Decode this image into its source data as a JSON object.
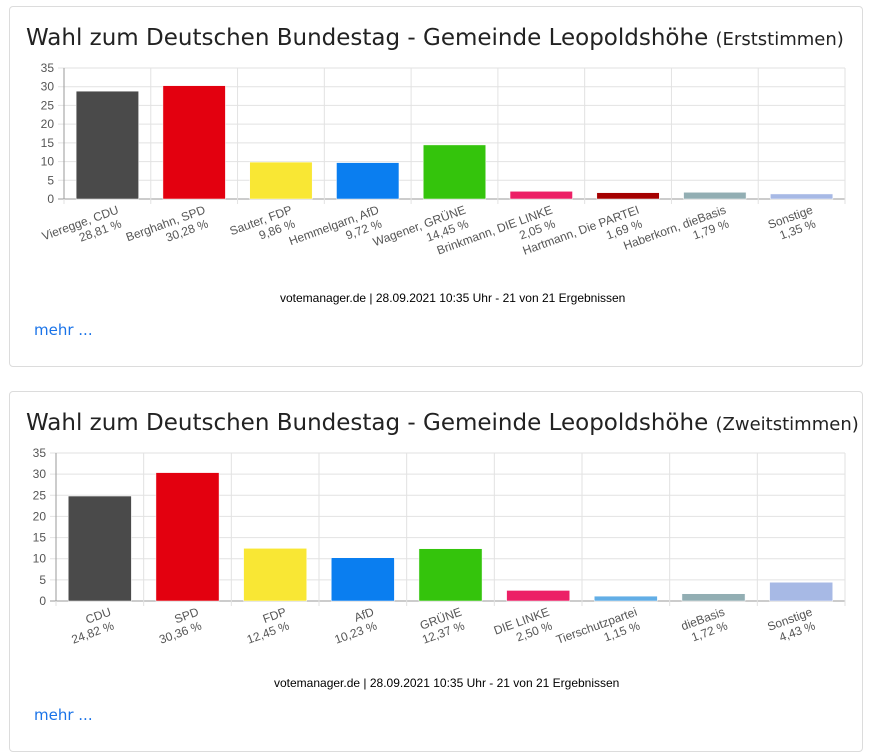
{
  "cards": [
    {
      "title": "Wahl zum Deutschen Bundestag - Gemeinde Leopoldshöhe",
      "subtitle": "(Erststimmen)",
      "source": "votemanager.de | 28.09.2021 10:35 Uhr - 21 von 21 Ergebnissen",
      "more": "mehr ..."
    },
    {
      "title": "Wahl zum Deutschen Bundestag - Gemeinde Leopoldshöhe",
      "subtitle": "(Zweitstimmen)",
      "source": "votemanager.de | 28.09.2021 10:35 Uhr - 21 von 21 Ergebnissen",
      "more": "mehr ..."
    }
  ],
  "chart_data": [
    {
      "type": "bar",
      "categories": [
        "Vieregge, CDU",
        "Berghahn, SPD",
        "Sauter, FDP",
        "Hemmelgarn, AfD",
        "Wagener, GRÜNE",
        "Brinkmann, DIE LINKE",
        "Hartmann, Die PARTEI",
        "Haberkorn, dieBasis",
        "Sonstige"
      ],
      "value_labels": [
        "28,81 %",
        "30,28 %",
        "9,86 %",
        "9,72 %",
        "14,45 %",
        "2,05 %",
        "1,69 %",
        "1,79 %",
        "1,35 %"
      ],
      "values": [
        28.81,
        30.28,
        9.86,
        9.72,
        14.45,
        2.05,
        1.69,
        1.79,
        1.35
      ],
      "colors": [
        "#4a4a4a",
        "#e3000f",
        "#f9e734",
        "#0a7ef0",
        "#34c40c",
        "#ec2066",
        "#a50000",
        "#92aeb3",
        "#a7b9e5"
      ],
      "yticks": [
        "0",
        "5",
        "10",
        "15",
        "20",
        "25",
        "30",
        "35"
      ],
      "ylim": [
        0,
        35
      ],
      "grid": true
    },
    {
      "type": "bar",
      "categories": [
        "CDU",
        "SPD",
        "FDP",
        "AfD",
        "GRÜNE",
        "DIE LINKE",
        "Tierschutzpartei",
        "dieBasis",
        "Sonstige"
      ],
      "value_labels": [
        "24,82 %",
        "30,36 %",
        "12,45 %",
        "10,23 %",
        "12,37 %",
        "2,50 %",
        "1,15 %",
        "1,72 %",
        "4,43 %"
      ],
      "values": [
        24.82,
        30.36,
        12.45,
        10.23,
        12.37,
        2.5,
        1.15,
        1.72,
        4.43
      ],
      "colors": [
        "#4a4a4a",
        "#e3000f",
        "#f9e734",
        "#0a7ef0",
        "#34c40c",
        "#ec2066",
        "#62aee6",
        "#92aeb3",
        "#a7b9e5"
      ],
      "yticks": [
        "0",
        "5",
        "10",
        "15",
        "20",
        "25",
        "30",
        "35"
      ],
      "ylim": [
        0,
        35
      ],
      "grid": true
    }
  ]
}
